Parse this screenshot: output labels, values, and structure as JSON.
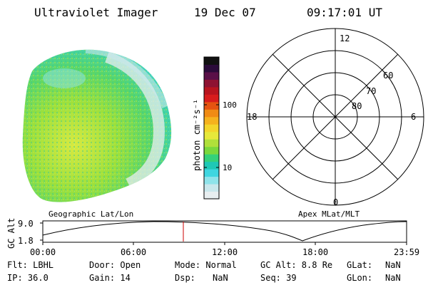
{
  "header": {
    "instrument": "Ultraviolet Imager",
    "date": "19 Dec 07",
    "time": "09:17:01 UT"
  },
  "colorbar": {
    "unit_label": "photon cm⁻²s⁻¹",
    "tick_labels": [
      "100",
      "10"
    ],
    "colors": [
      "#e8eef0",
      "#c9e7ec",
      "#8fe3ea",
      "#3fd6e0",
      "#1ec8b6",
      "#34d17a",
      "#7ad83c",
      "#b0e03a",
      "#e6e83a",
      "#f3d52b",
      "#f5b21e",
      "#f08b14",
      "#e55311",
      "#d81c1c",
      "#b8141e",
      "#8e1232",
      "#5a1048",
      "#2b0b3a",
      "#111"
    ]
  },
  "polar_plot": {
    "mlt_labels": [
      "12",
      "18",
      "6",
      "0"
    ],
    "mlat_labels": [
      "60",
      "70",
      "80"
    ]
  },
  "panel_labels": {
    "left": "Geographic Lat/Lon",
    "right": "Apex MLat/MLT"
  },
  "altitude_strip": {
    "ylabel": "GC Alt",
    "y_ticks": [
      "9.0",
      "1.8"
    ],
    "x_ticks": [
      "00:00",
      "06:00",
      "12:00",
      "18:00",
      "23:59"
    ],
    "current_marker_color": "#cc0000"
  },
  "footer": {
    "row1": [
      "Flt: LBHL",
      "Door: Open",
      "Mode: Normal",
      "GC Alt: 8.8 Re",
      "GLat:",
      "NaN"
    ],
    "row2": [
      "IP: 36.0",
      "Gain: 14",
      "Dsp:",
      "NaN",
      "Seq: 39",
      "GLon:",
      "NaN"
    ]
  }
}
